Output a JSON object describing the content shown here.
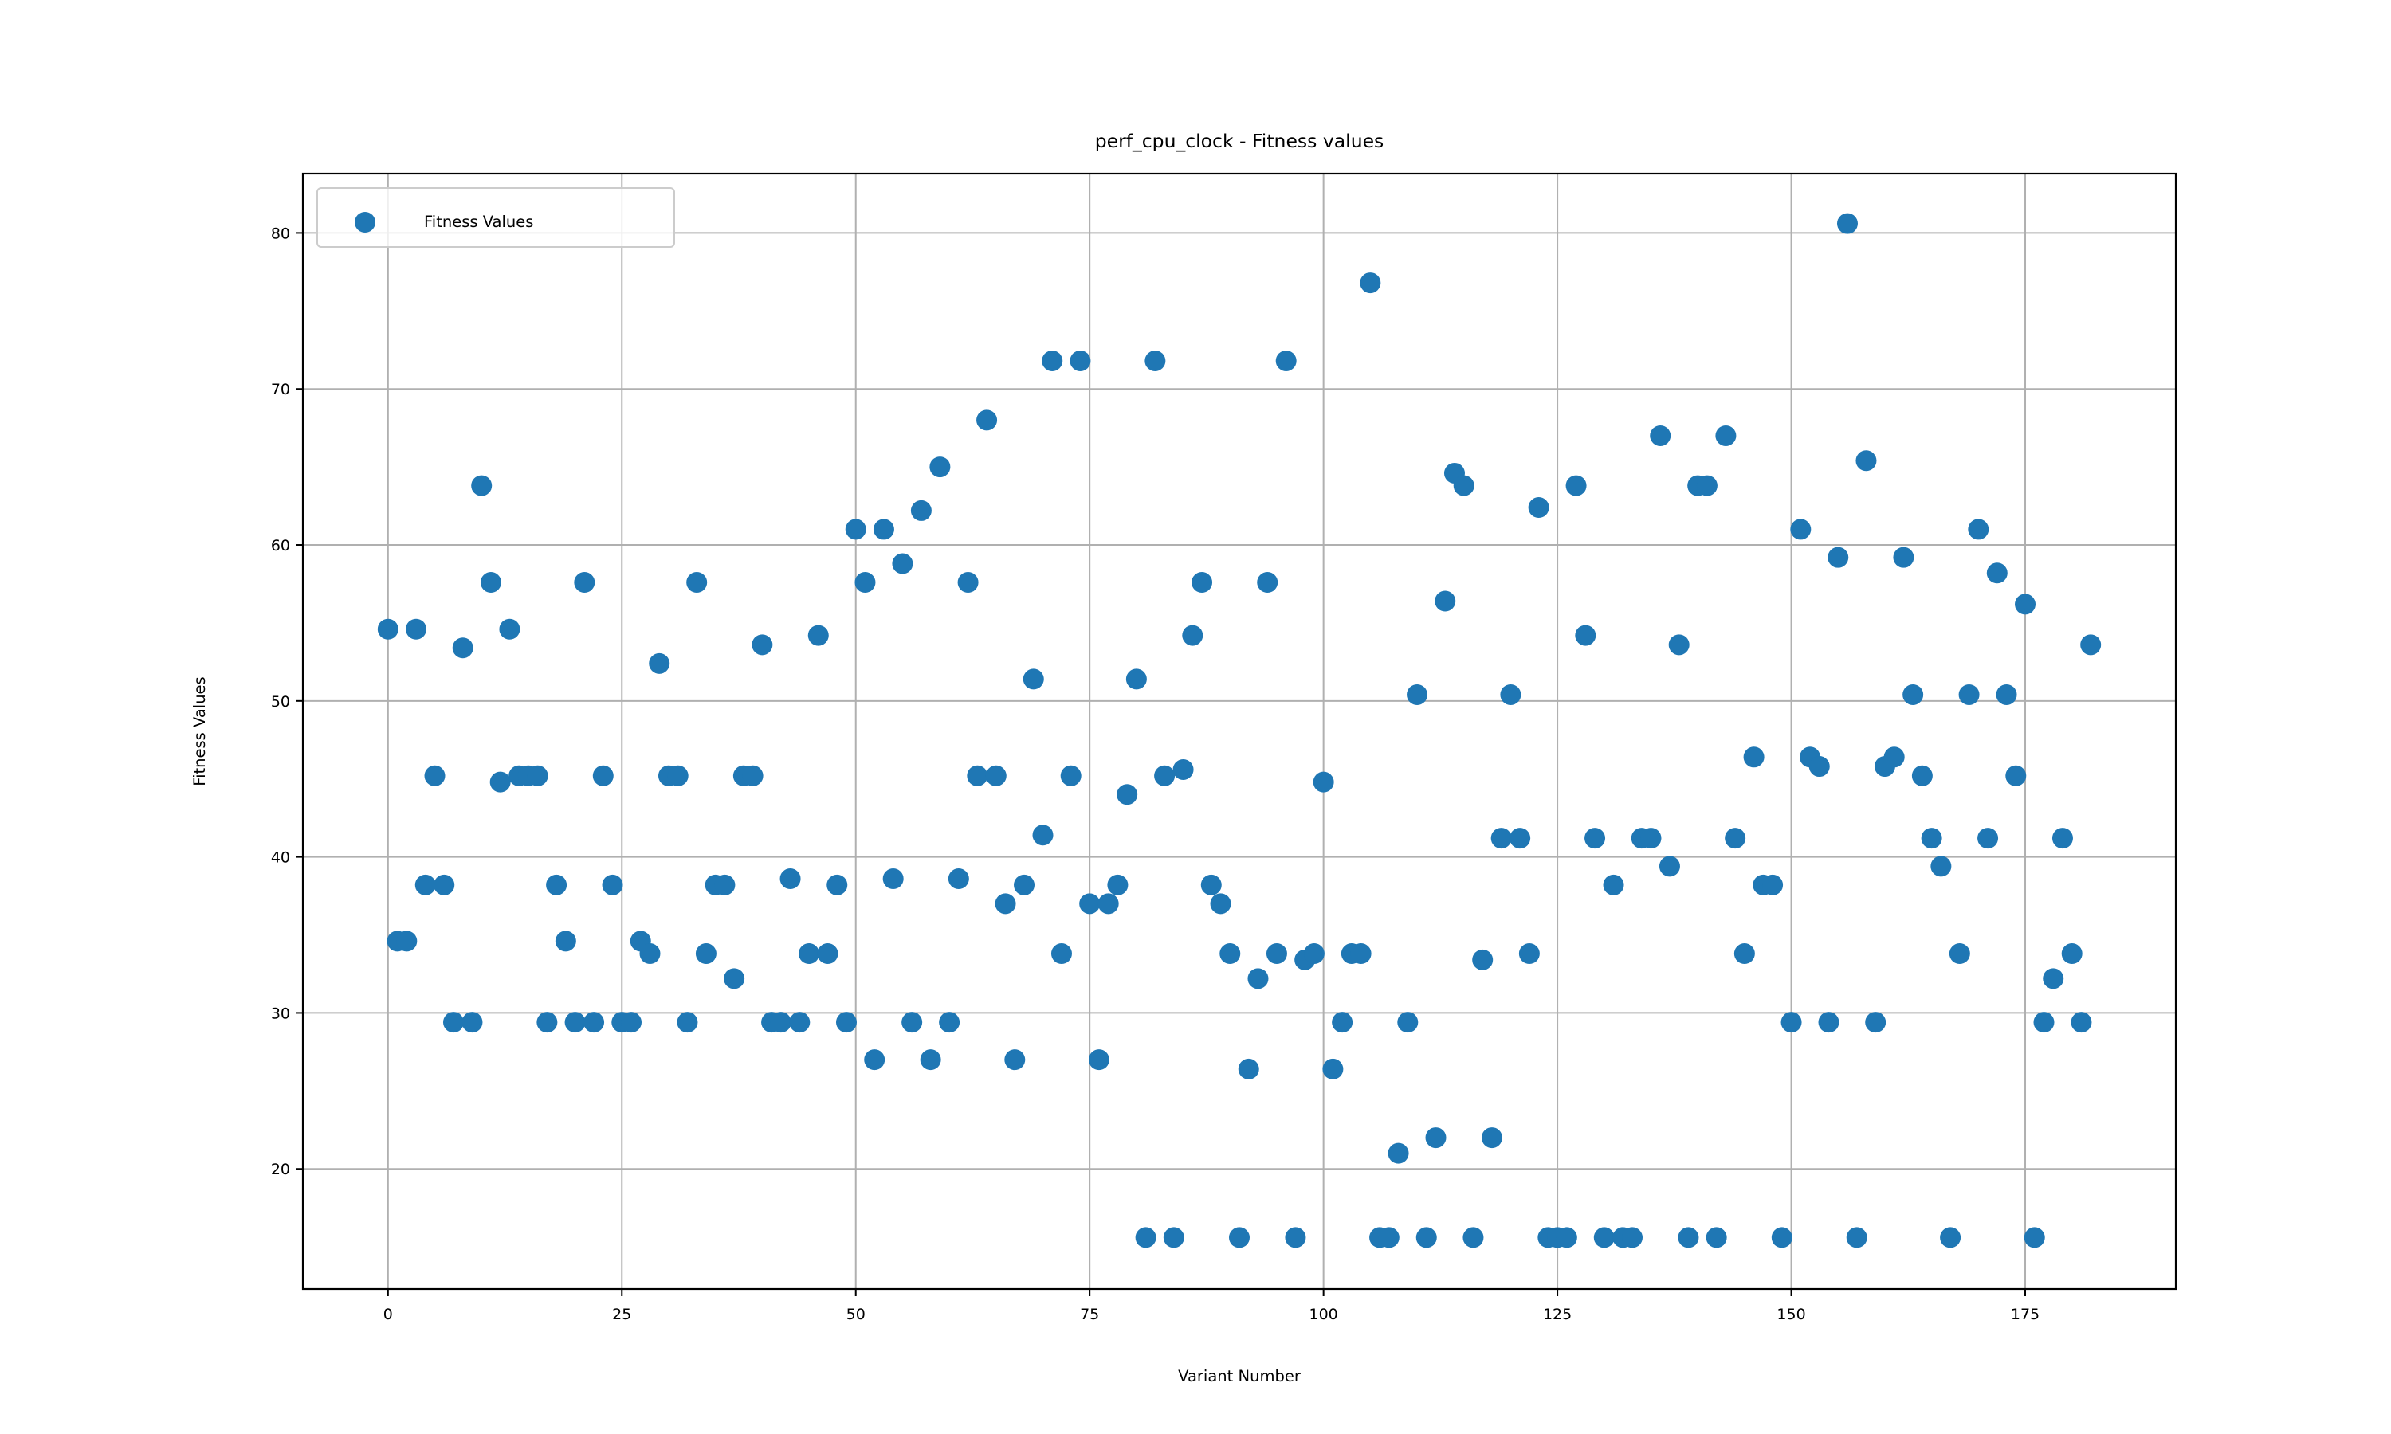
{
  "chart_data": {
    "type": "scatter",
    "title": "perf_cpu_clock - Fitness values",
    "xlabel": "Variant Number",
    "ylabel": "Fitness Values",
    "xlim": [
      -9.1,
      191.1
    ],
    "ylim": [
      12.3,
      83.8
    ],
    "xticks": [
      0,
      25,
      50,
      75,
      100,
      125,
      150,
      175
    ],
    "yticks": [
      20,
      30,
      40,
      50,
      60,
      70,
      80
    ],
    "grid": true,
    "legend_position": "top-left",
    "series": [
      {
        "name": "Fitness Values",
        "color": "#1f77b4",
        "x": [
          0,
          1,
          2,
          3,
          4,
          5,
          6,
          7,
          8,
          9,
          10,
          11,
          12,
          13,
          14,
          15,
          16,
          17,
          18,
          19,
          20,
          21,
          22,
          23,
          24,
          25,
          26,
          27,
          28,
          29,
          30,
          31,
          32,
          33,
          34,
          35,
          36,
          37,
          38,
          39,
          40,
          41,
          42,
          43,
          44,
          45,
          46,
          47,
          48,
          49,
          50,
          51,
          52,
          53,
          54,
          55,
          56,
          57,
          58,
          59,
          60,
          61,
          62,
          63,
          64,
          65,
          66,
          67,
          68,
          69,
          70,
          71,
          72,
          73,
          74,
          75,
          76,
          77,
          78,
          79,
          80,
          81,
          82,
          83,
          84,
          85,
          86,
          87,
          88,
          89,
          90,
          91,
          92,
          93,
          94,
          95,
          96,
          97,
          98,
          99,
          100,
          101,
          102,
          103,
          104,
          105,
          106,
          107,
          108,
          109,
          110,
          111,
          112,
          113,
          114,
          115,
          116,
          117,
          118,
          119,
          120,
          121,
          122,
          123,
          124,
          125,
          126,
          127,
          128,
          129,
          130,
          131,
          132,
          133,
          134,
          135,
          136,
          137,
          138,
          139,
          140,
          141,
          142,
          143,
          144,
          145,
          146,
          147,
          148,
          149,
          150,
          151,
          152,
          153,
          154,
          155,
          156,
          157,
          158,
          159,
          160,
          161,
          162,
          163,
          164,
          165,
          166,
          167,
          168,
          169,
          170,
          171,
          172,
          173,
          174,
          175,
          176,
          177,
          178,
          179,
          180,
          181,
          182
        ],
        "y": [
          54.6,
          34.6,
          34.6,
          54.6,
          38.2,
          45.2,
          38.2,
          29.4,
          53.4,
          29.4,
          63.8,
          57.6,
          44.8,
          54.6,
          45.2,
          45.2,
          45.2,
          29.4,
          38.2,
          34.6,
          29.4,
          57.6,
          29.4,
          45.2,
          38.2,
          29.4,
          29.4,
          34.6,
          33.8,
          52.4,
          45.2,
          45.2,
          29.4,
          57.6,
          33.8,
          38.2,
          38.2,
          32.2,
          45.2,
          45.2,
          53.6,
          29.4,
          29.4,
          38.6,
          29.4,
          33.8,
          54.2,
          33.8,
          38.2,
          29.4,
          61.0,
          57.6,
          27.0,
          61.0,
          38.6,
          58.8,
          29.4,
          62.2,
          27.0,
          65.0,
          29.4,
          38.6,
          57.6,
          45.2,
          68.0,
          45.2,
          37.0,
          27.0,
          38.2,
          51.4,
          41.4,
          71.8,
          33.8,
          45.2,
          71.8,
          37.0,
          27.0,
          37.0,
          38.2,
          44.0,
          51.4,
          15.6,
          71.8,
          45.2,
          15.6,
          45.6,
          54.2,
          57.6,
          38.2,
          37.0,
          33.8,
          15.6,
          26.4,
          32.2,
          57.6,
          33.8,
          71.8,
          15.6,
          33.4,
          33.8,
          44.8,
          26.4,
          29.4,
          33.8,
          33.8,
          76.8,
          15.6,
          15.6,
          21.0,
          29.4,
          50.4,
          15.6,
          22.0,
          56.4,
          64.6,
          63.8,
          15.6,
          33.4,
          22.0,
          41.2,
          50.4,
          41.2,
          33.8,
          62.4,
          15.6,
          15.6,
          15.6,
          63.8,
          54.2,
          41.2,
          15.6,
          38.2,
          15.6,
          15.6,
          41.2,
          41.2,
          67.0,
          39.4,
          53.6,
          15.6,
          63.8,
          63.8,
          15.6,
          67.0,
          41.2,
          33.8,
          46.4,
          38.2,
          38.2,
          15.6,
          29.4,
          61.0,
          46.4,
          45.8,
          29.4,
          59.2,
          80.6,
          15.6,
          65.4,
          29.4,
          45.8,
          46.4,
          59.2,
          50.4,
          45.2,
          41.2,
          39.4,
          15.6,
          33.8,
          50.4,
          61.0,
          41.2,
          58.2,
          50.4,
          45.2,
          56.2,
          15.6,
          29.4,
          32.2,
          41.2,
          33.8,
          29.4,
          53.6
        ]
      }
    ]
  }
}
